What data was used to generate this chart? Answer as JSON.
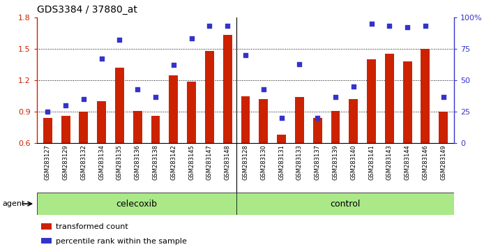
{
  "title": "GDS3384 / 37880_at",
  "samples": [
    "GSM283127",
    "GSM283129",
    "GSM283132",
    "GSM283134",
    "GSM283135",
    "GSM283136",
    "GSM283138",
    "GSM283142",
    "GSM283145",
    "GSM283147",
    "GSM283148",
    "GSM283128",
    "GSM283130",
    "GSM283131",
    "GSM283133",
    "GSM283137",
    "GSM283139",
    "GSM283140",
    "GSM283141",
    "GSM283143",
    "GSM283144",
    "GSM283146",
    "GSM283149"
  ],
  "bar_values": [
    0.84,
    0.86,
    0.9,
    1.0,
    1.32,
    0.91,
    0.86,
    1.25,
    1.19,
    1.48,
    1.63,
    1.05,
    1.02,
    0.68,
    1.04,
    0.84,
    0.91,
    1.02,
    1.4,
    1.45,
    1.38,
    1.5,
    0.9
  ],
  "dot_values": [
    25,
    30,
    35,
    67,
    82,
    43,
    37,
    62,
    83,
    93,
    93,
    70,
    43,
    20,
    63,
    20,
    37,
    45,
    95,
    93,
    92,
    93,
    37
  ],
  "celecoxib_count": 11,
  "control_count": 12,
  "ylim_left": [
    0.6,
    1.8
  ],
  "ylim_right": [
    0,
    100
  ],
  "yticks_left": [
    0.6,
    0.9,
    1.2,
    1.5,
    1.8
  ],
  "yticks_right": [
    0,
    25,
    50,
    75,
    100
  ],
  "bar_color": "#cc2200",
  "dot_color": "#3333cc",
  "celecoxib_color": "#aae888",
  "control_color": "#aae888",
  "agent_label": "agent",
  "legend_bar_label": "transformed count",
  "legend_dot_label": "percentile rank within the sample",
  "grid_lines": [
    0.9,
    1.2,
    1.5
  ]
}
